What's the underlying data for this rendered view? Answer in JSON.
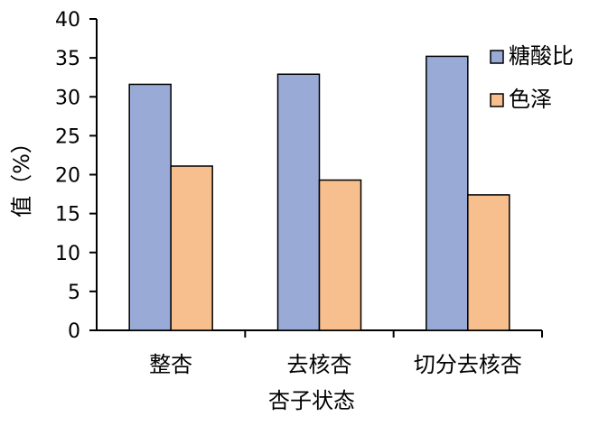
{
  "chart_data": {
    "type": "bar",
    "xlabel": "杏子状态",
    "ylabel": "值（%）",
    "categories": [
      "整杏",
      "去核杏",
      "切分去核杏"
    ],
    "series": [
      {
        "name": "糖酸比",
        "values": [
          31.6,
          32.9,
          35.2
        ],
        "color": "#9aaad6"
      },
      {
        "name": "色泽",
        "values": [
          21.1,
          19.3,
          17.4
        ],
        "color": "#f7bf8e"
      }
    ],
    "ylim": [
      0,
      40
    ],
    "yticks": [
      "0",
      "5",
      "10",
      "15",
      "20",
      "25",
      "30",
      "35",
      "40"
    ],
    "grid": false,
    "legend_position": "top-right"
  }
}
